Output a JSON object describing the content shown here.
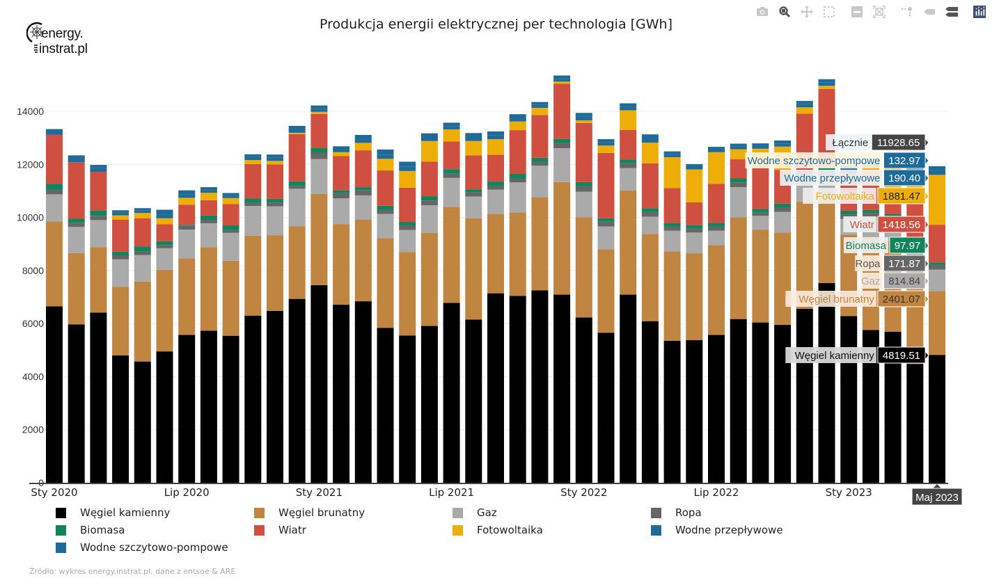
{
  "logo": {
    "line1": "energy.",
    "line2": "instrat.pl"
  },
  "modebar": [
    {
      "icon": "camera-icon",
      "label": "Download plot as png"
    },
    {
      "icon": "zoom-icon",
      "label": "Zoom"
    },
    {
      "icon": "pan-icon",
      "label": "Pan"
    },
    {
      "icon": "box-select-icon",
      "label": "Box select"
    },
    {
      "icon": "zoom-out-icon",
      "label": "Zoom out"
    },
    {
      "icon": "autoscale-icon",
      "label": "Autoscale"
    },
    {
      "icon": "spike-lines-icon",
      "label": "Toggle spike lines"
    },
    {
      "icon": "hover-closest-icon",
      "label": "Show closest data on hover"
    },
    {
      "icon": "hover-compare-icon",
      "label": "Compare data on hover"
    },
    {
      "icon": "plotly-logo-icon",
      "label": "Produced with Plotly"
    }
  ],
  "source": "Źródło: wykres energy.instrat.pl, dane z entsoe & ARE",
  "chart_data": {
    "type": "bar",
    "stacked": true,
    "title": "Produkcja energii elektrycznej per technologia [GWh]",
    "xlabel": "",
    "ylabel": "",
    "ylim": [
      0,
      14800
    ],
    "yticks": [
      0,
      2000,
      4000,
      6000,
      8000,
      10000,
      12000,
      14000
    ],
    "ytick_labels": [
      "0",
      "2000",
      "4000",
      "6000",
      "8000",
      "10000",
      "12000",
      "14000"
    ],
    "xtick_labels": [
      {
        "index": 0,
        "label": "Sty 2020"
      },
      {
        "index": 6,
        "label": "Lip 2020"
      },
      {
        "index": 12,
        "label": "Sty 2021"
      },
      {
        "index": 18,
        "label": "Lip 2021"
      },
      {
        "index": 24,
        "label": "Sty 2022"
      },
      {
        "index": 30,
        "label": "Lip 2022"
      },
      {
        "index": 36,
        "label": "Sty 2023"
      }
    ],
    "grid": true,
    "legend_position": "bottom",
    "categories": [
      "2020-01",
      "2020-02",
      "2020-03",
      "2020-04",
      "2020-05",
      "2020-06",
      "2020-07",
      "2020-08",
      "2020-09",
      "2020-10",
      "2020-11",
      "2020-12",
      "2021-01",
      "2021-02",
      "2021-03",
      "2021-04",
      "2021-05",
      "2021-06",
      "2021-07",
      "2021-08",
      "2021-09",
      "2021-10",
      "2021-11",
      "2021-12",
      "2022-01",
      "2022-02",
      "2022-03",
      "2022-04",
      "2022-05",
      "2022-06",
      "2022-07",
      "2022-08",
      "2022-09",
      "2022-10",
      "2022-11",
      "2022-12",
      "2023-01",
      "2023-02",
      "2023-03",
      "2023-04",
      "2023-05"
    ],
    "series": [
      {
        "name": "Węgiel kamienny",
        "color": "#000000",
        "values": [
          6650,
          5970,
          6410,
          4800,
          4570,
          4950,
          5570,
          5730,
          5540,
          6300,
          6480,
          6930,
          7450,
          6710,
          6840,
          5840,
          5550,
          5910,
          6780,
          6150,
          7140,
          7040,
          7250,
          7090,
          6230,
          5650,
          7090,
          6090,
          5350,
          5380,
          5570,
          6170,
          6040,
          5950,
          6560,
          7530,
          6280,
          5760,
          5690,
          4480,
          4819.51
        ]
      },
      {
        "name": "Węgiel brunatny",
        "color": "#c08540",
        "values": [
          3200,
          2690,
          2470,
          2590,
          3010,
          3080,
          2890,
          3150,
          2830,
          3010,
          2850,
          2740,
          3440,
          3040,
          3070,
          3380,
          3150,
          3510,
          3620,
          3820,
          2990,
          3150,
          3510,
          4240,
          3780,
          3150,
          3930,
          3290,
          3370,
          3270,
          3390,
          3830,
          3500,
          3480,
          4040,
          3290,
          3070,
          3500,
          3410,
          3560,
          2401.07
        ]
      },
      {
        "name": "Gaz",
        "color": "#aaaaaa",
        "values": [
          1020,
          980,
          1020,
          1030,
          1000,
          810,
          1080,
          900,
          1050,
          1120,
          1090,
          1410,
          1310,
          970,
          920,
          910,
          830,
          1040,
          1090,
          820,
          920,
          1130,
          1190,
          1280,
          960,
          860,
          840,
          650,
          780,
          780,
          540,
          1140,
          520,
          780,
          760,
          750,
          590,
          740,
          750,
          920,
          814.84
        ]
      },
      {
        "name": "Ropa",
        "color": "#666666",
        "values": [
          180,
          160,
          160,
          140,
          140,
          120,
          140,
          130,
          100,
          120,
          140,
          110,
          240,
          190,
          200,
          160,
          170,
          180,
          160,
          150,
          130,
          150,
          150,
          200,
          210,
          180,
          190,
          170,
          150,
          150,
          150,
          180,
          120,
          160,
          170,
          170,
          170,
          170,
          150,
          170,
          171.87
        ]
      },
      {
        "name": "Biomasa",
        "color": "#11845b",
        "values": [
          220,
          150,
          200,
          150,
          190,
          140,
          40,
          160,
          180,
          170,
          140,
          170,
          180,
          120,
          110,
          150,
          130,
          160,
          170,
          120,
          170,
          170,
          150,
          150,
          150,
          130,
          130,
          150,
          130,
          130,
          140,
          150,
          140,
          150,
          150,
          150,
          140,
          110,
          130,
          100,
          97.97
        ]
      },
      {
        "name": "Wiatr",
        "color": "#cf5040",
        "values": [
          1850,
          2130,
          1460,
          1210,
          1060,
          640,
          760,
          580,
          800,
          1290,
          1300,
          1780,
          1280,
          1280,
          1390,
          1330,
          1290,
          1300,
          1040,
          1280,
          1010,
          1650,
          1610,
          2080,
          2230,
          2460,
          1120,
          1690,
          1330,
          860,
          1470,
          720,
          1650,
          1270,
          2230,
          2950,
          1150,
          1040,
          950,
          1280,
          1418.56
        ]
      },
      {
        "name": "Fotowoltaika",
        "color": "#eeae0a",
        "values": [
          0,
          0,
          0,
          160,
          200,
          230,
          260,
          280,
          230,
          150,
          130,
          50,
          80,
          150,
          280,
          440,
          630,
          780,
          460,
          540,
          590,
          330,
          270,
          80,
          100,
          280,
          740,
          780,
          1160,
          1240,
          1200,
          380,
          620,
          880,
          240,
          120,
          260,
          540,
          1080,
          1180,
          1881.47
        ]
      },
      {
        "name": "Wodne przepływowe",
        "color": "#1e6a99",
        "values": [
          120,
          150,
          140,
          110,
          100,
          140,
          130,
          90,
          80,
          120,
          120,
          140,
          120,
          110,
          130,
          160,
          160,
          150,
          110,
          150,
          140,
          130,
          110,
          90,
          140,
          130,
          140,
          170,
          120,
          120,
          110,
          110,
          110,
          120,
          120,
          120,
          170,
          120,
          130,
          160,
          190.4
        ]
      },
      {
        "name": "Wodne szczytowo-pompowe",
        "color": "#1e6a99",
        "values": [
          90,
          110,
          120,
          80,
          80,
          180,
          150,
          120,
          110,
          100,
          120,
          120,
          120,
          110,
          170,
          190,
          190,
          140,
          140,
          150,
          150,
          140,
          110,
          140,
          140,
          110,
          120,
          140,
          100,
          80,
          90,
          100,
          90,
          110,
          120,
          130,
          130,
          120,
          120,
          140,
          132.97
        ]
      }
    ],
    "hover": {
      "x_label": "Maj 2023",
      "total_label": "Łącznie",
      "total_value": "11928.65",
      "items": [
        {
          "name": "Wodne szczytowo-pompowe",
          "value": "132.97"
        },
        {
          "name": "Wodne przepływowe",
          "value": "190.40"
        },
        {
          "name": "Fotowoltaika",
          "value": "1881.47"
        },
        {
          "name": "Wiatr",
          "value": "1418.56"
        },
        {
          "name": "Biomasa",
          "value": "97.97"
        },
        {
          "name": "Ropa",
          "value": "171.87"
        },
        {
          "name": "Gaz",
          "value": "814.84"
        },
        {
          "name": "Węgiel brunatny",
          "value": "2401.07"
        },
        {
          "name": "Węgiel kamienny",
          "value": "4819.51"
        }
      ]
    }
  },
  "legend": [
    {
      "name": "Węgiel kamienny",
      "color": "#000000"
    },
    {
      "name": "Węgiel brunatny",
      "color": "#c08540"
    },
    {
      "name": "Gaz",
      "color": "#aaaaaa"
    },
    {
      "name": "Ropa",
      "color": "#666666"
    },
    {
      "name": "Biomasa",
      "color": "#11845b"
    },
    {
      "name": "Wiatr",
      "color": "#cf5040"
    },
    {
      "name": "Fotowoltaika",
      "color": "#eeae0a"
    },
    {
      "name": "Wodne przepływowe",
      "color": "#1e6a99"
    },
    {
      "name": "Wodne szczytowo-pompowe",
      "color": "#1e6a99"
    }
  ]
}
